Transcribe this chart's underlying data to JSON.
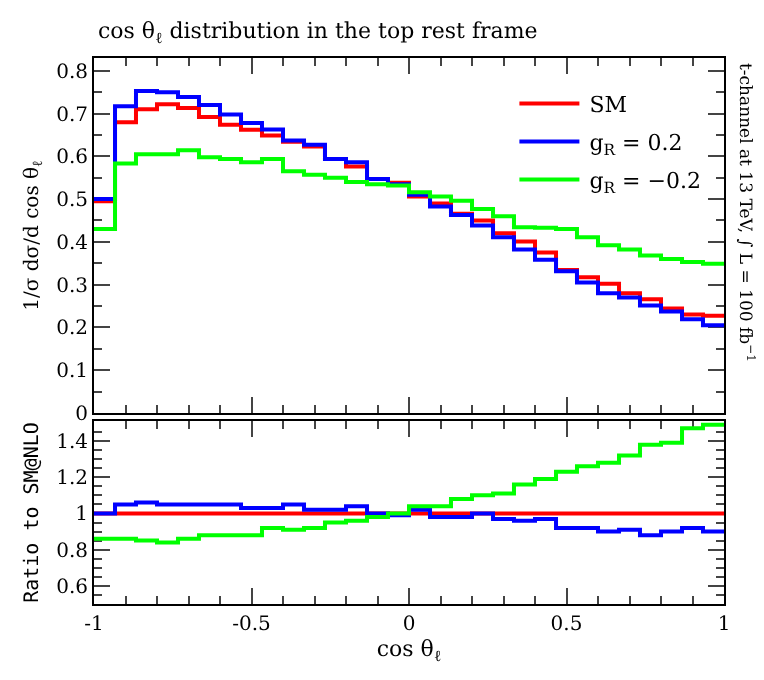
{
  "chart_data": [
    {
      "type": "histogram",
      "title": "cos θ$_{ℓ}$ distribution in the top rest frame",
      "ylabel": "1/σ dσ/d cos θ$_{ℓ}$",
      "annotations": [
        "t-channel at 13 TeV, ∫ L = 100 fb$^{−1}$"
      ],
      "bins": [
        -1.0,
        -0.9333,
        -0.8667,
        -0.8,
        -0.7333,
        -0.6667,
        -0.6,
        -0.5333,
        -0.4667,
        -0.4,
        -0.3333,
        -0.2667,
        -0.2,
        -0.1333,
        -0.0667,
        0.0,
        0.0667,
        0.1333,
        0.2,
        0.2667,
        0.3333,
        0.4,
        0.4667,
        0.5333,
        0.6,
        0.6667,
        0.7333,
        0.8,
        0.8667,
        0.9333,
        1.0
      ],
      "series": [
        {
          "name": "SM",
          "color": "#ff0000",
          "values": [
            0.495,
            0.68,
            0.71,
            0.722,
            0.713,
            0.692,
            0.674,
            0.662,
            0.649,
            0.634,
            0.623,
            0.594,
            0.576,
            0.547,
            0.538,
            0.506,
            0.49,
            0.466,
            0.45,
            0.42,
            0.401,
            0.375,
            0.334,
            0.317,
            0.302,
            0.28,
            0.266,
            0.244,
            0.23,
            0.227
          ]
        },
        {
          "name": "g$_{R}$ = 0.2",
          "color": "#0000ff",
          "values": [
            0.5,
            0.717,
            0.753,
            0.75,
            0.739,
            0.72,
            0.698,
            0.678,
            0.663,
            0.637,
            0.627,
            0.594,
            0.586,
            0.547,
            0.535,
            0.51,
            0.483,
            0.463,
            0.438,
            0.411,
            0.382,
            0.358,
            0.331,
            0.305,
            0.28,
            0.27,
            0.251,
            0.237,
            0.219,
            0.205
          ]
        },
        {
          "name": "g$_{R}$ = −0.2",
          "color": "#00ff00",
          "values": [
            0.43,
            0.583,
            0.605,
            0.605,
            0.614,
            0.598,
            0.594,
            0.586,
            0.594,
            0.565,
            0.557,
            0.55,
            0.54,
            0.535,
            0.532,
            0.516,
            0.506,
            0.496,
            0.477,
            0.46,
            0.434,
            0.433,
            0.43,
            0.411,
            0.392,
            0.382,
            0.368,
            0.36,
            0.353,
            0.349
          ]
        }
      ],
      "xlim": [
        -1,
        1
      ],
      "xticks": [
        -1,
        -0.5,
        0,
        0.5,
        1
      ],
      "ylim": [
        0,
        0.83
      ],
      "yticks": [
        0,
        0.1,
        0.2,
        0.3,
        0.4,
        0.5,
        0.6,
        0.7,
        0.8
      ],
      "tick_labels": "y",
      "legend": "top right"
    },
    {
      "type": "histogram",
      "xlabel": "cos θ$_{ℓ}$",
      "ylabel": "Ratio to SM@NLO",
      "bins": [
        -1.0,
        -0.9333,
        -0.8667,
        -0.8,
        -0.7333,
        -0.6667,
        -0.6,
        -0.5333,
        -0.4667,
        -0.4,
        -0.3333,
        -0.2667,
        -0.2,
        -0.1333,
        -0.0667,
        0.0,
        0.0667,
        0.1333,
        0.2,
        0.2667,
        0.3333,
        0.4,
        0.4667,
        0.5333,
        0.6,
        0.6667,
        0.7333,
        0.8,
        0.8667,
        0.9333,
        1.0
      ],
      "series": [
        {
          "color": "#ff0000",
          "values": [
            1,
            1,
            1,
            1,
            1,
            1,
            1,
            1,
            1,
            1,
            1,
            1,
            1,
            1,
            1,
            1,
            1,
            1,
            1,
            1,
            1,
            1,
            1,
            1,
            1,
            1,
            1,
            1,
            1,
            1
          ]
        },
        {
          "color": "#0000ff",
          "values": [
            1.0,
            1.05,
            1.06,
            1.05,
            1.05,
            1.05,
            1.05,
            1.03,
            1.03,
            1.05,
            1.02,
            1.02,
            1.04,
            1.0,
            0.99,
            1.02,
            0.98,
            0.98,
            1.0,
            0.97,
            0.96,
            0.97,
            0.92,
            0.92,
            0.9,
            0.91,
            0.88,
            0.9,
            0.92,
            0.9
          ]
        },
        {
          "color": "#00ff00",
          "values": [
            0.86,
            0.86,
            0.85,
            0.84,
            0.86,
            0.88,
            0.88,
            0.88,
            0.92,
            0.91,
            0.92,
            0.95,
            0.96,
            0.98,
            1.0,
            1.04,
            1.04,
            1.08,
            1.1,
            1.11,
            1.16,
            1.19,
            1.23,
            1.26,
            1.28,
            1.32,
            1.38,
            1.39,
            1.47,
            1.49
          ]
        }
      ],
      "xlim": [
        -1,
        1
      ],
      "xticks": [
        -1,
        -0.5,
        0,
        0.5,
        1
      ],
      "ylim": [
        0.5,
        1.51
      ],
      "yticks": [
        0.6,
        0.8,
        1,
        1.2,
        1.4
      ],
      "legend": false
    }
  ]
}
